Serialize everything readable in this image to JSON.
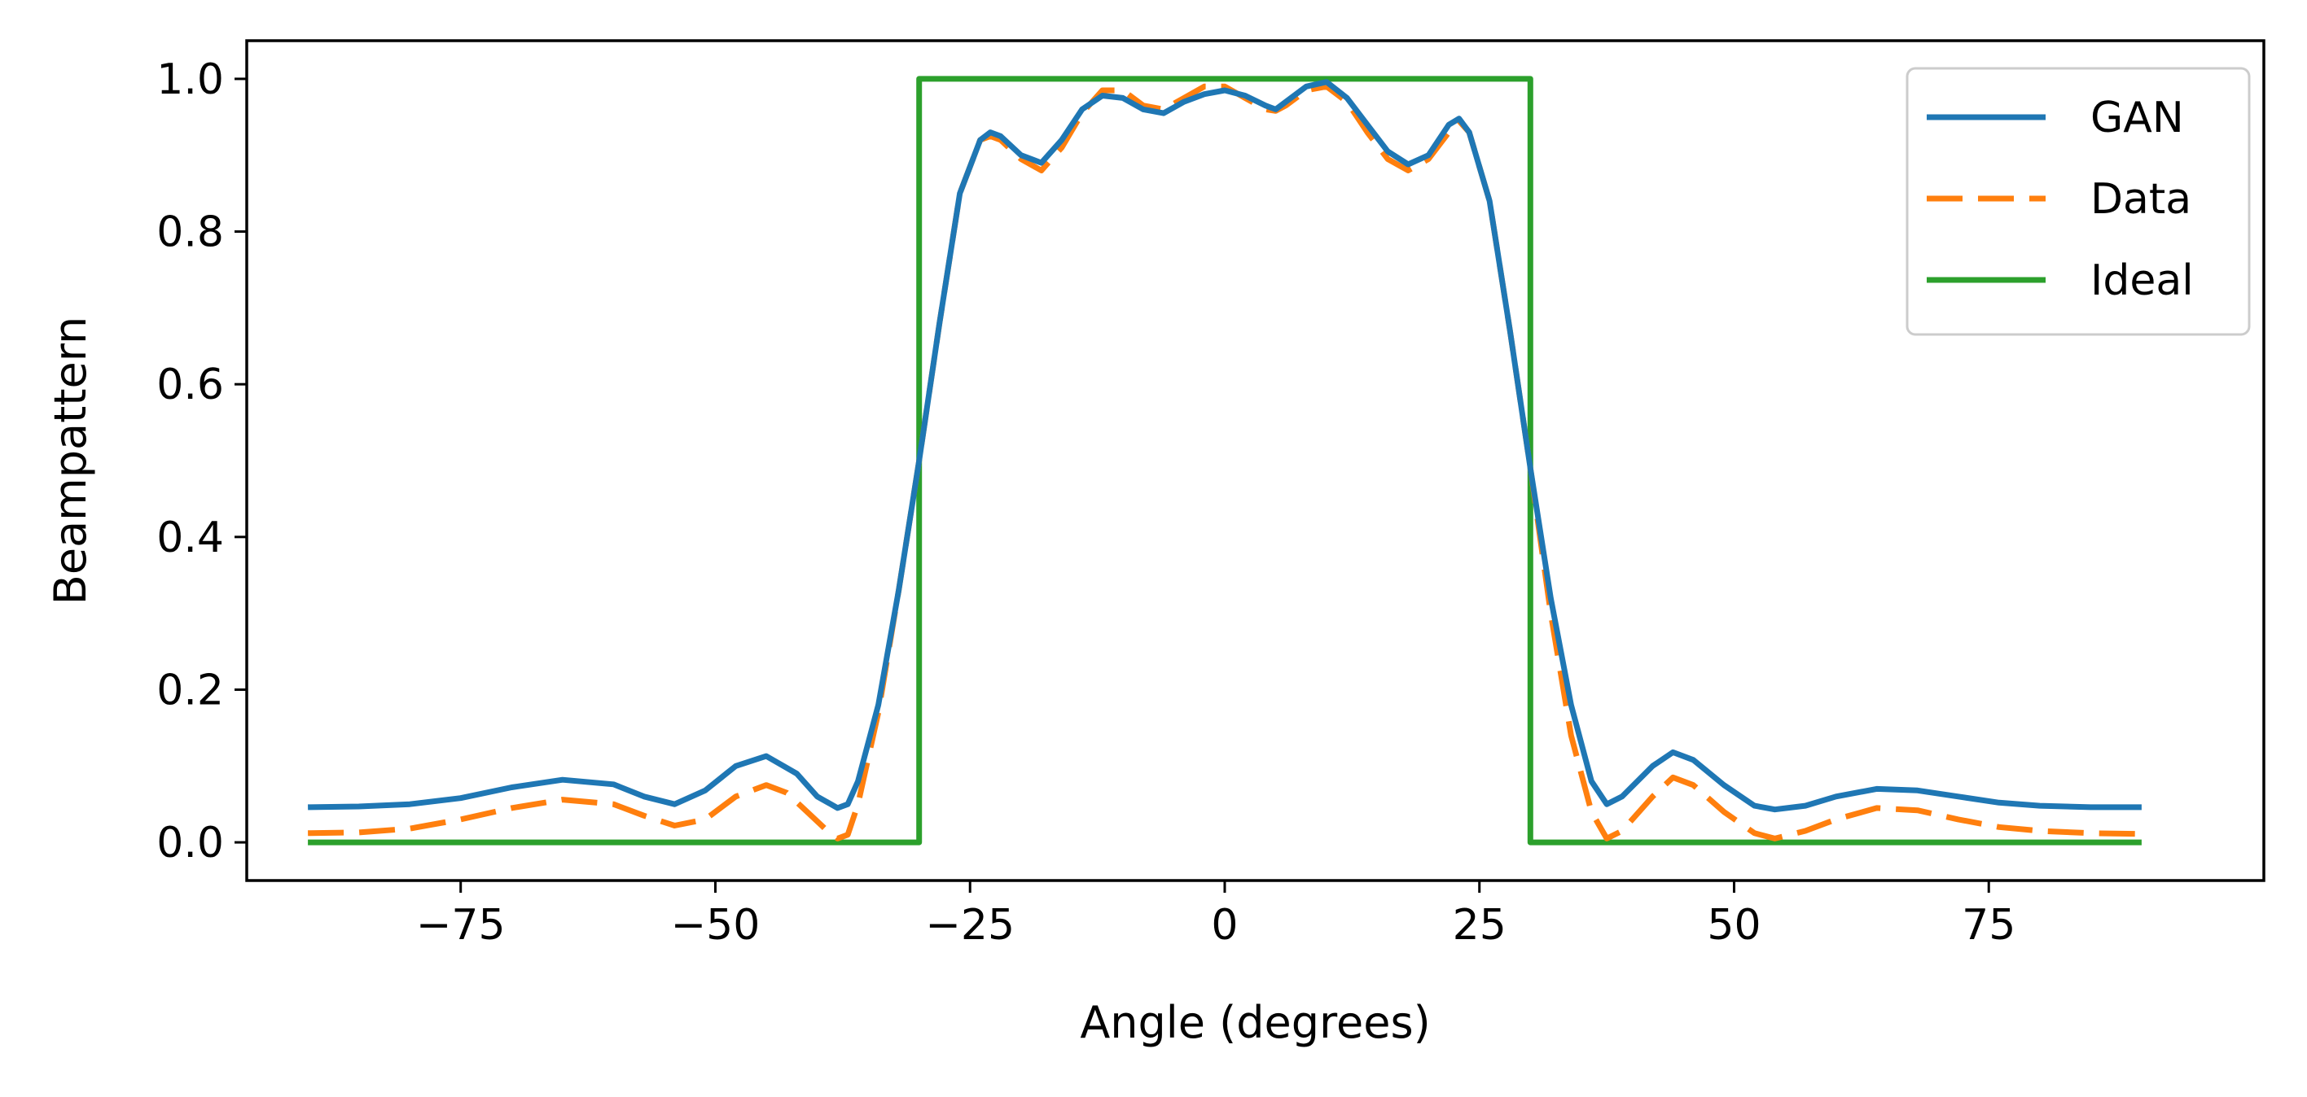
{
  "chart_data": {
    "type": "line",
    "title": "",
    "xlabel": "Angle (degrees)",
    "ylabel": "Beampattern",
    "xlim": [
      -96,
      102
    ],
    "ylim": [
      -0.05,
      1.05
    ],
    "x_ticks": [
      -75,
      -50,
      -25,
      0,
      25,
      50,
      75
    ],
    "x_tick_labels": [
      "−75",
      "−50",
      "−25",
      "0",
      "25",
      "50",
      "75"
    ],
    "y_ticks": [
      0.0,
      0.2,
      0.4,
      0.6,
      0.8,
      1.0
    ],
    "y_tick_labels": [
      "0.0",
      "0.2",
      "0.4",
      "0.6",
      "0.8",
      "1.0"
    ],
    "grid": false,
    "legend_position": "upper right",
    "series": [
      {
        "name": "GAN",
        "color": "#1f77b4",
        "style": "solid",
        "x": [
          -90,
          -85,
          -80,
          -75,
          -70,
          -65,
          -60,
          -57,
          -54,
          -51,
          -48,
          -45,
          -42,
          -40,
          -38,
          -37,
          -36,
          -34,
          -32,
          -30,
          -28,
          -26,
          -24,
          -23,
          -22,
          -20,
          -18,
          -16,
          -14,
          -12,
          -10,
          -8,
          -6,
          -4,
          -2,
          0,
          2,
          4,
          5,
          6,
          8,
          10,
          12,
          14,
          16,
          18,
          20,
          22,
          23,
          24,
          26,
          28,
          30,
          32,
          34,
          36,
          37.5,
          39,
          42,
          44,
          46,
          49,
          52,
          54,
          57,
          60,
          64,
          68,
          72,
          76,
          80,
          85,
          90
        ],
        "y": [
          0.046,
          0.047,
          0.05,
          0.058,
          0.072,
          0.082,
          0.076,
          0.06,
          0.05,
          0.068,
          0.1,
          0.113,
          0.09,
          0.06,
          0.045,
          0.05,
          0.08,
          0.18,
          0.33,
          0.5,
          0.68,
          0.85,
          0.92,
          0.93,
          0.925,
          0.9,
          0.89,
          0.92,
          0.96,
          0.978,
          0.975,
          0.96,
          0.955,
          0.97,
          0.98,
          0.985,
          0.978,
          0.965,
          0.96,
          0.97,
          0.99,
          0.996,
          0.975,
          0.94,
          0.905,
          0.888,
          0.9,
          0.94,
          0.948,
          0.93,
          0.84,
          0.67,
          0.49,
          0.32,
          0.18,
          0.08,
          0.05,
          0.06,
          0.1,
          0.118,
          0.108,
          0.075,
          0.048,
          0.043,
          0.048,
          0.06,
          0.07,
          0.068,
          0.06,
          0.052,
          0.048,
          0.046,
          0.046
        ]
      },
      {
        "name": "Data",
        "color": "#ff7f0e",
        "style": "dashed",
        "x": [
          -90,
          -85,
          -80,
          -75,
          -70,
          -65,
          -60,
          -57,
          -54,
          -51,
          -48,
          -45,
          -43,
          -41,
          -39,
          -38,
          -37,
          -36,
          -34,
          -32,
          -30,
          -28,
          -26,
          -24,
          -23,
          -22,
          -20,
          -18,
          -16,
          -14,
          -12,
          -10,
          -8,
          -6,
          -4,
          -2,
          0,
          2,
          4,
          5,
          6,
          8,
          10,
          12,
          14,
          16,
          18,
          20,
          22,
          23,
          24,
          26,
          28,
          30,
          32,
          34,
          36,
          37.5,
          39,
          42,
          44,
          46,
          49,
          52,
          54,
          57,
          60,
          64,
          68,
          72,
          76,
          80,
          85,
          90
        ],
        "y": [
          0.012,
          0.013,
          0.018,
          0.03,
          0.045,
          0.056,
          0.05,
          0.035,
          0.022,
          0.03,
          0.06,
          0.075,
          0.065,
          0.04,
          0.015,
          0.005,
          0.01,
          0.05,
          0.17,
          0.33,
          0.5,
          0.68,
          0.85,
          0.92,
          0.925,
          0.92,
          0.895,
          0.88,
          0.91,
          0.955,
          0.985,
          0.985,
          0.965,
          0.96,
          0.975,
          0.99,
          0.99,
          0.975,
          0.96,
          0.958,
          0.965,
          0.985,
          0.99,
          0.97,
          0.93,
          0.895,
          0.88,
          0.895,
          0.93,
          0.945,
          0.93,
          0.84,
          0.67,
          0.49,
          0.3,
          0.14,
          0.04,
          0.005,
          0.015,
          0.06,
          0.085,
          0.075,
          0.04,
          0.012,
          0.005,
          0.015,
          0.03,
          0.045,
          0.042,
          0.03,
          0.02,
          0.015,
          0.012,
          0.011
        ]
      },
      {
        "name": "Ideal",
        "color": "#2ca02c",
        "style": "solid",
        "x": [
          -90,
          -30,
          -30,
          30,
          30,
          90
        ],
        "y": [
          0,
          0,
          1,
          1,
          0,
          0
        ]
      }
    ]
  }
}
